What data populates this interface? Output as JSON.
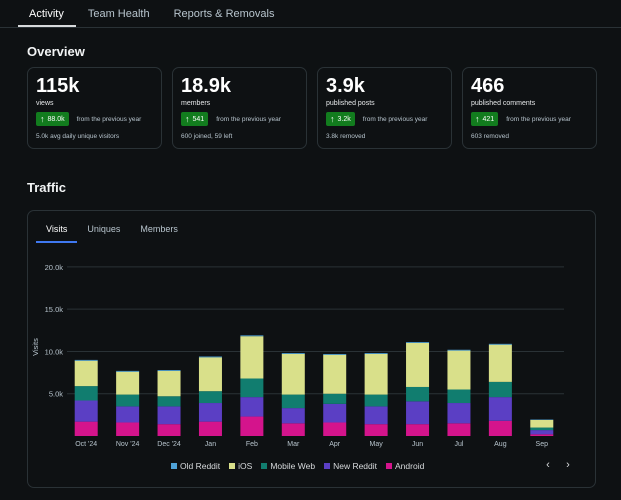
{
  "tabs": [
    {
      "label": "Activity",
      "active": true
    },
    {
      "label": "Team Health",
      "active": false
    },
    {
      "label": "Reports & Removals",
      "active": false
    }
  ],
  "overview": {
    "title": "Overview",
    "cards": [
      {
        "value": "115k",
        "label": "views",
        "change": "88.0k",
        "compare": "from the previous year",
        "sub": "5.0k avg daily unique visitors"
      },
      {
        "value": "18.9k",
        "label": "members",
        "change": "541",
        "compare": "from the previous year",
        "sub": "600 joined, 59 left"
      },
      {
        "value": "3.9k",
        "label": "published posts",
        "change": "3.2k",
        "compare": "from the previous year",
        "sub": "3.8k removed"
      },
      {
        "value": "466",
        "label": "published comments",
        "change": "421",
        "compare": "from the previous year",
        "sub": "603 removed"
      }
    ]
  },
  "traffic": {
    "title": "Traffic",
    "tabs": [
      {
        "label": "Visits",
        "active": true
      },
      {
        "label": "Uniques",
        "active": false
      },
      {
        "label": "Members",
        "active": false
      }
    ]
  },
  "colors": {
    "Old Reddit": "#4fa3d8",
    "iOS": "#d9e08a",
    "Mobile Web": "#117d6f",
    "New Reddit": "#5b3fc4",
    "Android": "#d4148c",
    "badge": "#127c1e",
    "accent": "#3f78f0"
  },
  "chart_data": {
    "type": "bar",
    "stacked": true,
    "title": "",
    "xlabel": "",
    "ylabel": "Visits",
    "ylim": [
      0,
      22000
    ],
    "yticks": [
      5000,
      10000,
      15000,
      20000
    ],
    "ytick_labels": [
      "5.0k",
      "10.0k",
      "15.0k",
      "20.0k"
    ],
    "grid": true,
    "categories": [
      "Oct '24",
      "Nov '24",
      "Dec '24",
      "Jan",
      "Feb",
      "Mar",
      "Apr",
      "May",
      "Jun",
      "Jul",
      "Aug",
      "Sep"
    ],
    "series": [
      {
        "name": "Android",
        "values": [
          1700,
          1600,
          1400,
          1700,
          2300,
          1500,
          1600,
          1400,
          1400,
          1500,
          1800,
          200
        ]
      },
      {
        "name": "New Reddit",
        "values": [
          2500,
          1900,
          2100,
          2200,
          2300,
          1800,
          2200,
          2100,
          2700,
          2400,
          2800,
          500
        ]
      },
      {
        "name": "Mobile Web",
        "values": [
          1700,
          1400,
          1200,
          1400,
          2200,
          1600,
          1200,
          1400,
          1700,
          1600,
          1800,
          300
        ]
      },
      {
        "name": "iOS",
        "values": [
          3000,
          2700,
          3000,
          4000,
          5000,
          4800,
          4600,
          4800,
          5200,
          4600,
          4400,
          900
        ]
      },
      {
        "name": "Old Reddit",
        "values": [
          100,
          100,
          100,
          100,
          100,
          100,
          100,
          100,
          100,
          100,
          100,
          50
        ]
      }
    ],
    "legend": [
      "Old Reddit",
      "iOS",
      "Mobile Web",
      "New Reddit",
      "Android"
    ],
    "legend_position": "bottom"
  },
  "pager": {
    "prev": "‹",
    "next": "›"
  }
}
